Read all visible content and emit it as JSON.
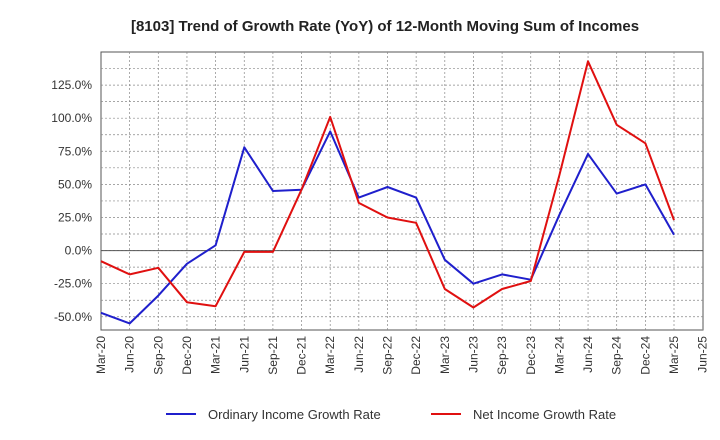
{
  "chart_data": {
    "type": "line",
    "title": "[8103]  Trend of Growth Rate (YoY) of 12-Month Moving Sum of Incomes",
    "xlabel": "",
    "ylabel": "",
    "x_ticks": [
      "Mar-20",
      "Jun-20",
      "Sep-20",
      "Dec-20",
      "Mar-21",
      "Jun-21",
      "Sep-21",
      "Dec-21",
      "Mar-22",
      "Jun-22",
      "Sep-22",
      "Dec-22",
      "Mar-23",
      "Jun-23",
      "Sep-23",
      "Dec-23",
      "Mar-24",
      "Jun-24",
      "Sep-24",
      "Dec-24",
      "Mar-25",
      "Jun-25"
    ],
    "y_ticks": [
      "-50.0%",
      "-25.0%",
      "0.0%",
      "25.0%",
      "50.0%",
      "75.0%",
      "100.0%",
      "125.0%"
    ],
    "y_tick_values": [
      -50,
      -25,
      0,
      25,
      50,
      75,
      100,
      125
    ],
    "ylim": [
      -60,
      150
    ],
    "grid": true,
    "legend_position": "bottom",
    "series": [
      {
        "name": "Ordinary Income Growth Rate",
        "color": "#1f1fcc",
        "x": [
          "Mar-20",
          "Jun-20",
          "Sep-20",
          "Dec-20",
          "Mar-21",
          "Jun-21",
          "Sep-21",
          "Dec-21",
          "Mar-22",
          "Jun-22",
          "Sep-22",
          "Dec-22",
          "Mar-23",
          "Jun-23",
          "Sep-23",
          "Dec-23",
          "Mar-24",
          "Jun-24",
          "Sep-24",
          "Dec-24",
          "Mar-25"
        ],
        "values": [
          -47,
          -55,
          -34,
          -10,
          4,
          78,
          45,
          46,
          90,
          40,
          48,
          40,
          -7,
          -25,
          -18,
          -22,
          27,
          73,
          43,
          50,
          12
        ]
      },
      {
        "name": "Net Income Growth Rate",
        "color": "#e01010",
        "x": [
          "Mar-20",
          "Jun-20",
          "Sep-20",
          "Dec-20",
          "Mar-21",
          "Jun-21",
          "Sep-21",
          "Dec-21",
          "Mar-22",
          "Jun-22",
          "Sep-22",
          "Dec-22",
          "Mar-23",
          "Jun-23",
          "Sep-23",
          "Dec-23",
          "Mar-24",
          "Jun-24",
          "Sep-24",
          "Dec-24",
          "Mar-25"
        ],
        "values": [
          -8,
          -18,
          -13,
          -39,
          -42,
          -1,
          -1,
          46,
          101,
          36,
          25,
          21,
          -29,
          -43,
          -29,
          -23,
          57,
          143,
          95,
          81,
          23
        ]
      }
    ]
  }
}
